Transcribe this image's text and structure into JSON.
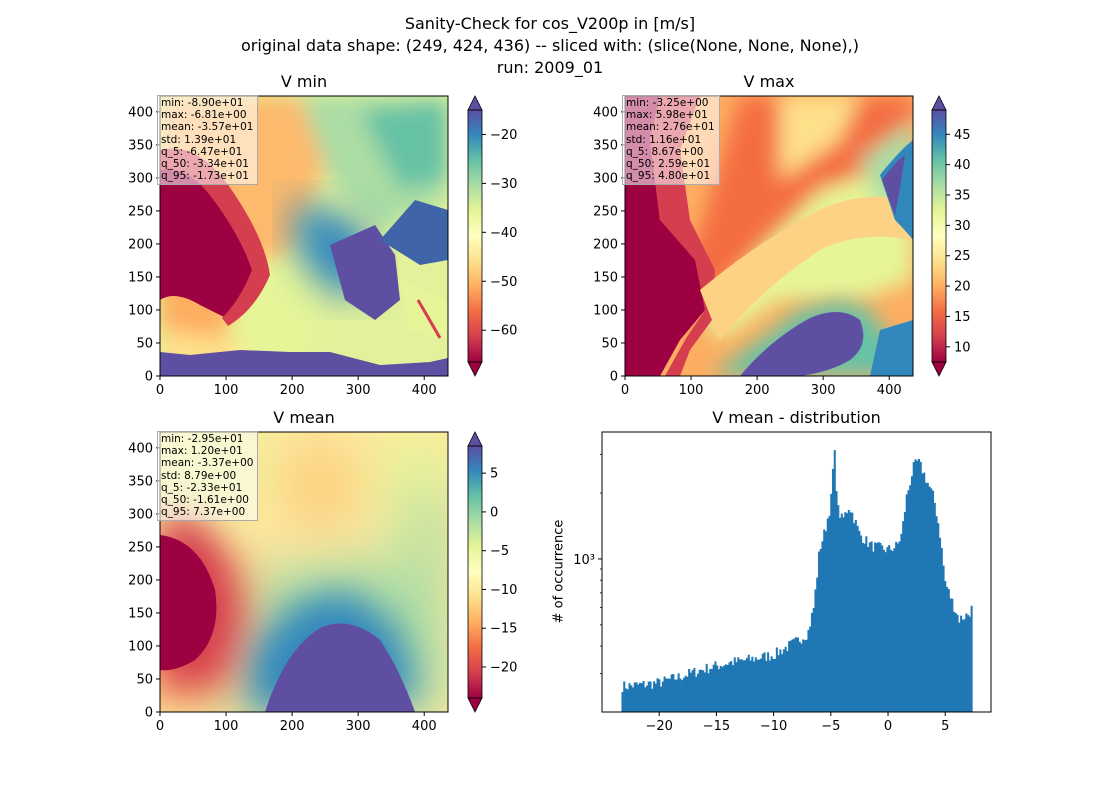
{
  "figure": {
    "title_lines": [
      "Sanity-Check for cos_V200p in [m/s]",
      "original data shape: (249, 424, 436) -- sliced with: (slice(None, None, None),)",
      "run: 2009_01"
    ]
  },
  "colormap": "Spectral",
  "chart_data": [
    {
      "type": "heatmap",
      "title": "V min",
      "x_ticks": [
        0,
        100,
        200,
        300,
        400
      ],
      "y_ticks": [
        0,
        50,
        100,
        150,
        200,
        250,
        300,
        350,
        400
      ],
      "xlim": [
        0,
        436
      ],
      "ylim": [
        0,
        424
      ],
      "colorbar": {
        "range": [
          -66.5,
          -15
        ],
        "ticks": [
          -60,
          -50,
          -40,
          -30,
          -20
        ],
        "extend": "both"
      },
      "stats": [
        "min: -8.90e+01",
        "max: -6.81e+00",
        "mean: -3.57e+01",
        "std: 1.39e+01",
        "q_5: -6.47e+01",
        "q_50: -3.34e+01",
        "q_95: -1.73e+01"
      ]
    },
    {
      "type": "heatmap",
      "title": "V max",
      "x_ticks": [
        0,
        100,
        200,
        300,
        400
      ],
      "y_ticks": [
        0,
        50,
        100,
        150,
        200,
        250,
        300,
        350,
        400
      ],
      "xlim": [
        0,
        436
      ],
      "ylim": [
        0,
        424
      ],
      "colorbar": {
        "range": [
          7.5,
          49
        ],
        "ticks": [
          10,
          15,
          20,
          25,
          30,
          35,
          40,
          45
        ],
        "extend": "both"
      },
      "stats": [
        "min: -3.25e+00",
        "max: 5.98e+01",
        "mean: 2.76e+01",
        "std: 1.16e+01",
        "q_5: 8.67e+00",
        "q_50: 2.59e+01",
        "q_95: 4.80e+01"
      ]
    },
    {
      "type": "heatmap",
      "title": "V mean",
      "x_ticks": [
        0,
        100,
        200,
        300,
        400
      ],
      "y_ticks": [
        0,
        50,
        100,
        150,
        200,
        250,
        300,
        350,
        400
      ],
      "xlim": [
        0,
        436
      ],
      "ylim": [
        0,
        424
      ],
      "colorbar": {
        "range": [
          -24,
          8.5
        ],
        "ticks": [
          -20,
          -15,
          -10,
          -5,
          0,
          5
        ],
        "extend": "both"
      },
      "stats": [
        "min: -2.95e+01",
        "max: 1.20e+01",
        "mean: -3.37e+00",
        "std: 8.79e+00",
        "q_5: -2.33e+01",
        "q_50: -1.61e+00",
        "q_95: 7.37e+00"
      ]
    },
    {
      "type": "bar",
      "title": "V mean - distribution",
      "ylabel": "# of occurrence",
      "yscale": "log",
      "xlim": [
        -25,
        9
      ],
      "ylim": [
        200,
        3800
      ],
      "x_ticks": [
        -20,
        -15,
        -10,
        -5,
        0,
        5
      ],
      "y_ticks": [
        1000
      ],
      "y_tick_labels": [
        "10³"
      ],
      "color": "#1f77b4",
      "anchors": [
        [
          -23.3,
          262
        ],
        [
          -22,
          265
        ],
        [
          -20,
          272
        ],
        [
          -18,
          292
        ],
        [
          -16,
          315
        ],
        [
          -14,
          335
        ],
        [
          -12,
          348
        ],
        [
          -10,
          365
        ],
        [
          -8,
          420
        ],
        [
          -7,
          460
        ],
        [
          -6.5,
          600
        ],
        [
          -6.2,
          850
        ],
        [
          -6,
          1100
        ],
        [
          -5.5,
          1350
        ],
        [
          -5,
          1800
        ],
        [
          -4.7,
          3200
        ],
        [
          -4.4,
          1700
        ],
        [
          -4,
          1500
        ],
        [
          -3.4,
          1750
        ],
        [
          -3,
          1550
        ],
        [
          -2.5,
          1300
        ],
        [
          -1.5,
          1150
        ],
        [
          0,
          1100
        ],
        [
          0.8,
          1150
        ],
        [
          1.2,
          1300
        ],
        [
          1.6,
          1900
        ],
        [
          2.2,
          2600
        ],
        [
          2.6,
          2800
        ],
        [
          3.0,
          2550
        ],
        [
          3.5,
          2200
        ],
        [
          4.0,
          1900
        ],
        [
          4.5,
          1350
        ],
        [
          5.0,
          780
        ],
        [
          5.6,
          640
        ],
        [
          6.2,
          530
        ],
        [
          7.0,
          560
        ],
        [
          7.37,
          600
        ]
      ]
    }
  ]
}
